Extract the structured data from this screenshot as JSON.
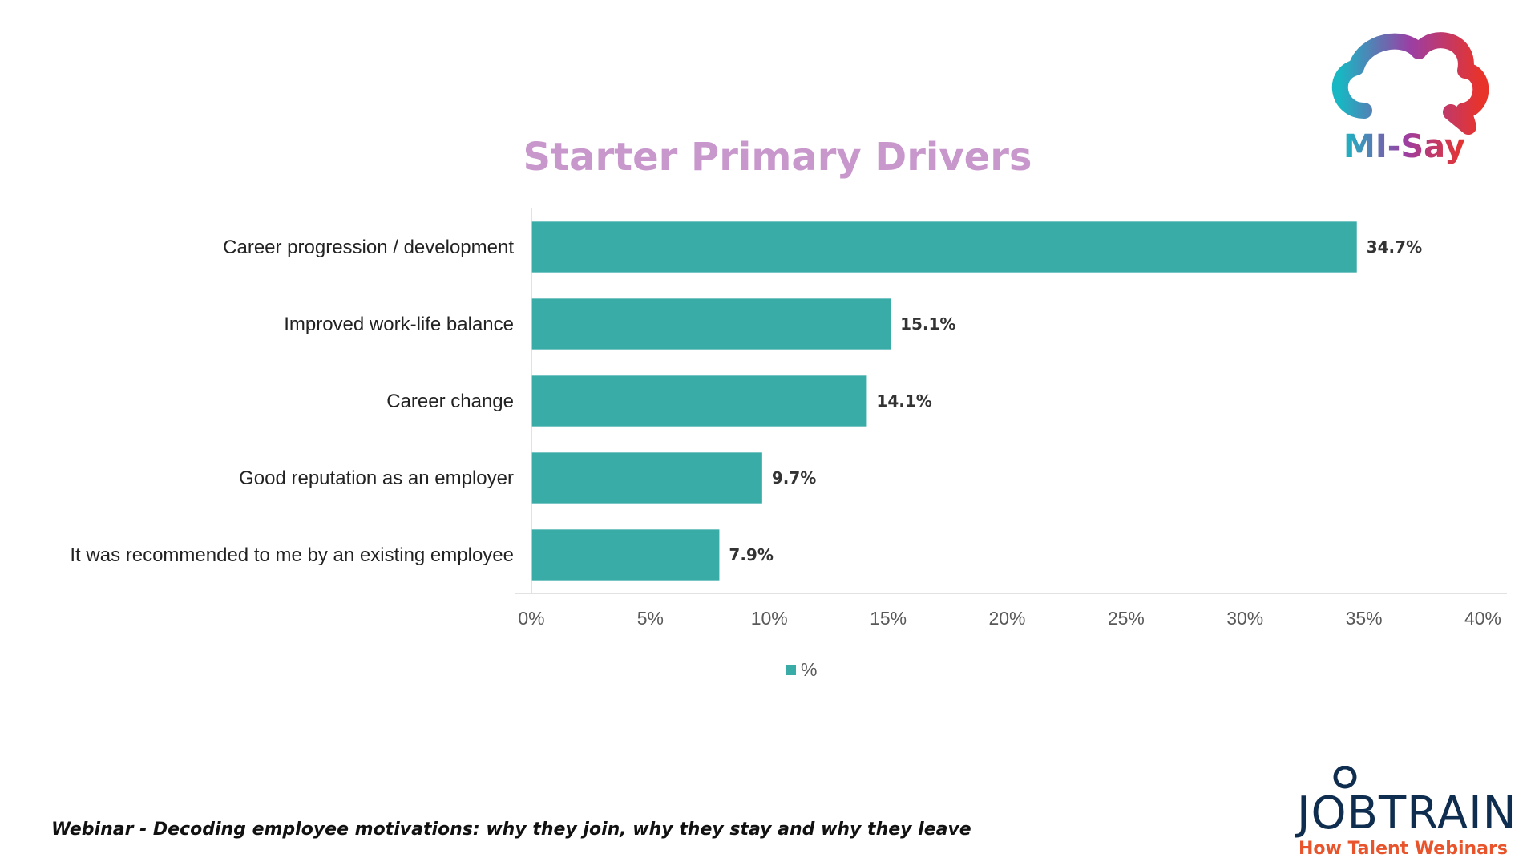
{
  "chart_data": {
    "type": "bar",
    "orientation": "horizontal",
    "title": "Starter Primary Drivers",
    "categories": [
      "Career progression / development",
      "Improved work-life balance",
      "Career change",
      "Good reputation as an employer",
      "It was recommended to me by an existing employee"
    ],
    "series": [
      {
        "name": "%",
        "values": [
          34.7,
          15.1,
          14.1,
          9.7,
          7.9
        ],
        "data_labels": [
          "34.7%",
          "15.1%",
          "14.1%",
          "9.7%",
          "7.9%"
        ]
      }
    ],
    "xlim": [
      0,
      40
    ],
    "xticks": [
      0,
      5,
      10,
      15,
      20,
      25,
      30,
      35,
      40
    ],
    "xtick_labels": [
      "0%",
      "5%",
      "10%",
      "15%",
      "20%",
      "25%",
      "30%",
      "35%",
      "40%"
    ],
    "grid": false,
    "legend_position": "bottom",
    "colors": {
      "bar": "#3aaca8",
      "title": "#c898cc",
      "axis": "#d9d9d9",
      "label": "#222222",
      "tick": "#595959"
    }
  },
  "branding": {
    "misay_logo_text": "MI-Say",
    "jobtrain_logo_text": "JOBTRAIN",
    "jobtrain_tagline": "How Talent Webinars"
  },
  "footer": {
    "text": "Webinar - Decoding employee motivations: why they join, why they stay and why they leave"
  }
}
